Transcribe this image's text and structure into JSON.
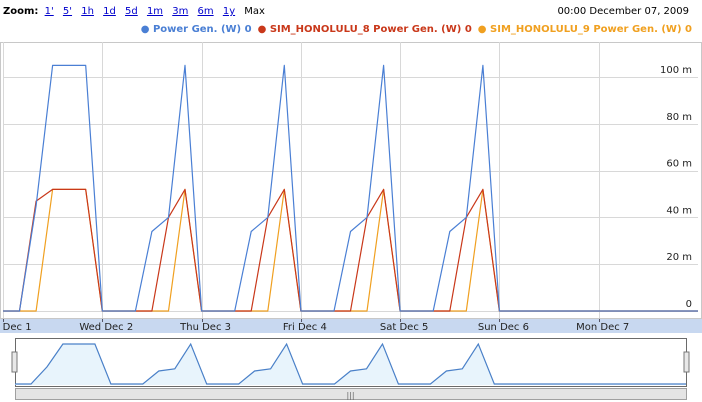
{
  "zoom": {
    "label": "Zoom:",
    "links": [
      "1'",
      "5'",
      "1h",
      "1d",
      "5d",
      "1m",
      "3m",
      "6m",
      "1y"
    ],
    "max": "Max"
  },
  "datetime": "00:00 December 07, 2009",
  "colors": {
    "blue": "#4a7fd4",
    "red": "#c9381a",
    "orange": "#f0a020",
    "grid": "#d8d8d8",
    "axis_band": "#c8d8f0",
    "nav_fill": "#e8f4fc",
    "nav_line": "#4a80c8"
  },
  "chart_data": {
    "type": "line",
    "x_unit": "hours since Dec 1 00:00",
    "x": [
      0,
      4,
      8,
      12,
      16,
      20,
      24,
      28,
      32,
      36,
      40,
      44,
      48,
      52,
      56,
      60,
      64,
      68,
      72,
      76,
      80,
      84,
      88,
      92,
      96,
      100,
      104,
      108,
      112,
      116,
      120,
      168
    ],
    "series": [
      {
        "name": "Power Gen. (W)",
        "value_label": "0",
        "color": "#4a7fd4",
        "values": [
          0,
          0,
          45,
          105,
          105,
          105,
          0,
          0,
          0,
          34,
          40,
          105,
          0,
          0,
          0,
          34,
          40,
          105,
          0,
          0,
          0,
          34,
          40,
          105,
          0,
          0,
          0,
          34,
          40,
          105,
          0,
          0
        ]
      },
      {
        "name": "SIM_HONOLULU_8 Power Gen. (W)",
        "value_label": "0",
        "color": "#c9381a",
        "values": [
          0,
          0,
          47,
          52,
          52,
          52,
          0,
          0,
          0,
          0,
          40,
          52,
          0,
          0,
          0,
          0,
          40,
          52,
          0,
          0,
          0,
          0,
          40,
          52,
          0,
          0,
          0,
          0,
          40,
          52,
          0,
          0
        ]
      },
      {
        "name": "SIM_HONOLULU_9 Power Gen. (W)",
        "value_label": "0",
        "color": "#f0a020",
        "values": [
          0,
          0,
          0,
          52,
          52,
          52,
          0,
          0,
          0,
          0,
          0,
          52,
          0,
          0,
          0,
          0,
          0,
          52,
          0,
          0,
          0,
          0,
          0,
          52,
          0,
          0,
          0,
          0,
          0,
          52,
          0,
          0
        ]
      }
    ],
    "x_ticks": [
      {
        "x": 0,
        "label": "Tue Dec 1"
      },
      {
        "x": 24,
        "label": "Wed Dec 2"
      },
      {
        "x": 48,
        "label": "Thu Dec 3"
      },
      {
        "x": 72,
        "label": "Fri Dec 4"
      },
      {
        "x": 96,
        "label": "Sat Dec 5"
      },
      {
        "x": 120,
        "label": "Sun Dec 6"
      },
      {
        "x": 144,
        "label": "Mon Dec 7"
      }
    ],
    "y_ticks": [
      {
        "y": 0,
        "label": "0"
      },
      {
        "y": 20,
        "label": "20 m"
      },
      {
        "y": 40,
        "label": "40 m"
      },
      {
        "y": 60,
        "label": "60 m"
      },
      {
        "y": 80,
        "label": "80 m"
      },
      {
        "y": 100,
        "label": "100 m"
      }
    ],
    "xlim": [
      0,
      168
    ],
    "ylim": [
      -3,
      115
    ],
    "grid": true,
    "y_axis_side": "right",
    "navigator": {
      "series_index": 0,
      "scrollbar_label": "|||"
    }
  }
}
